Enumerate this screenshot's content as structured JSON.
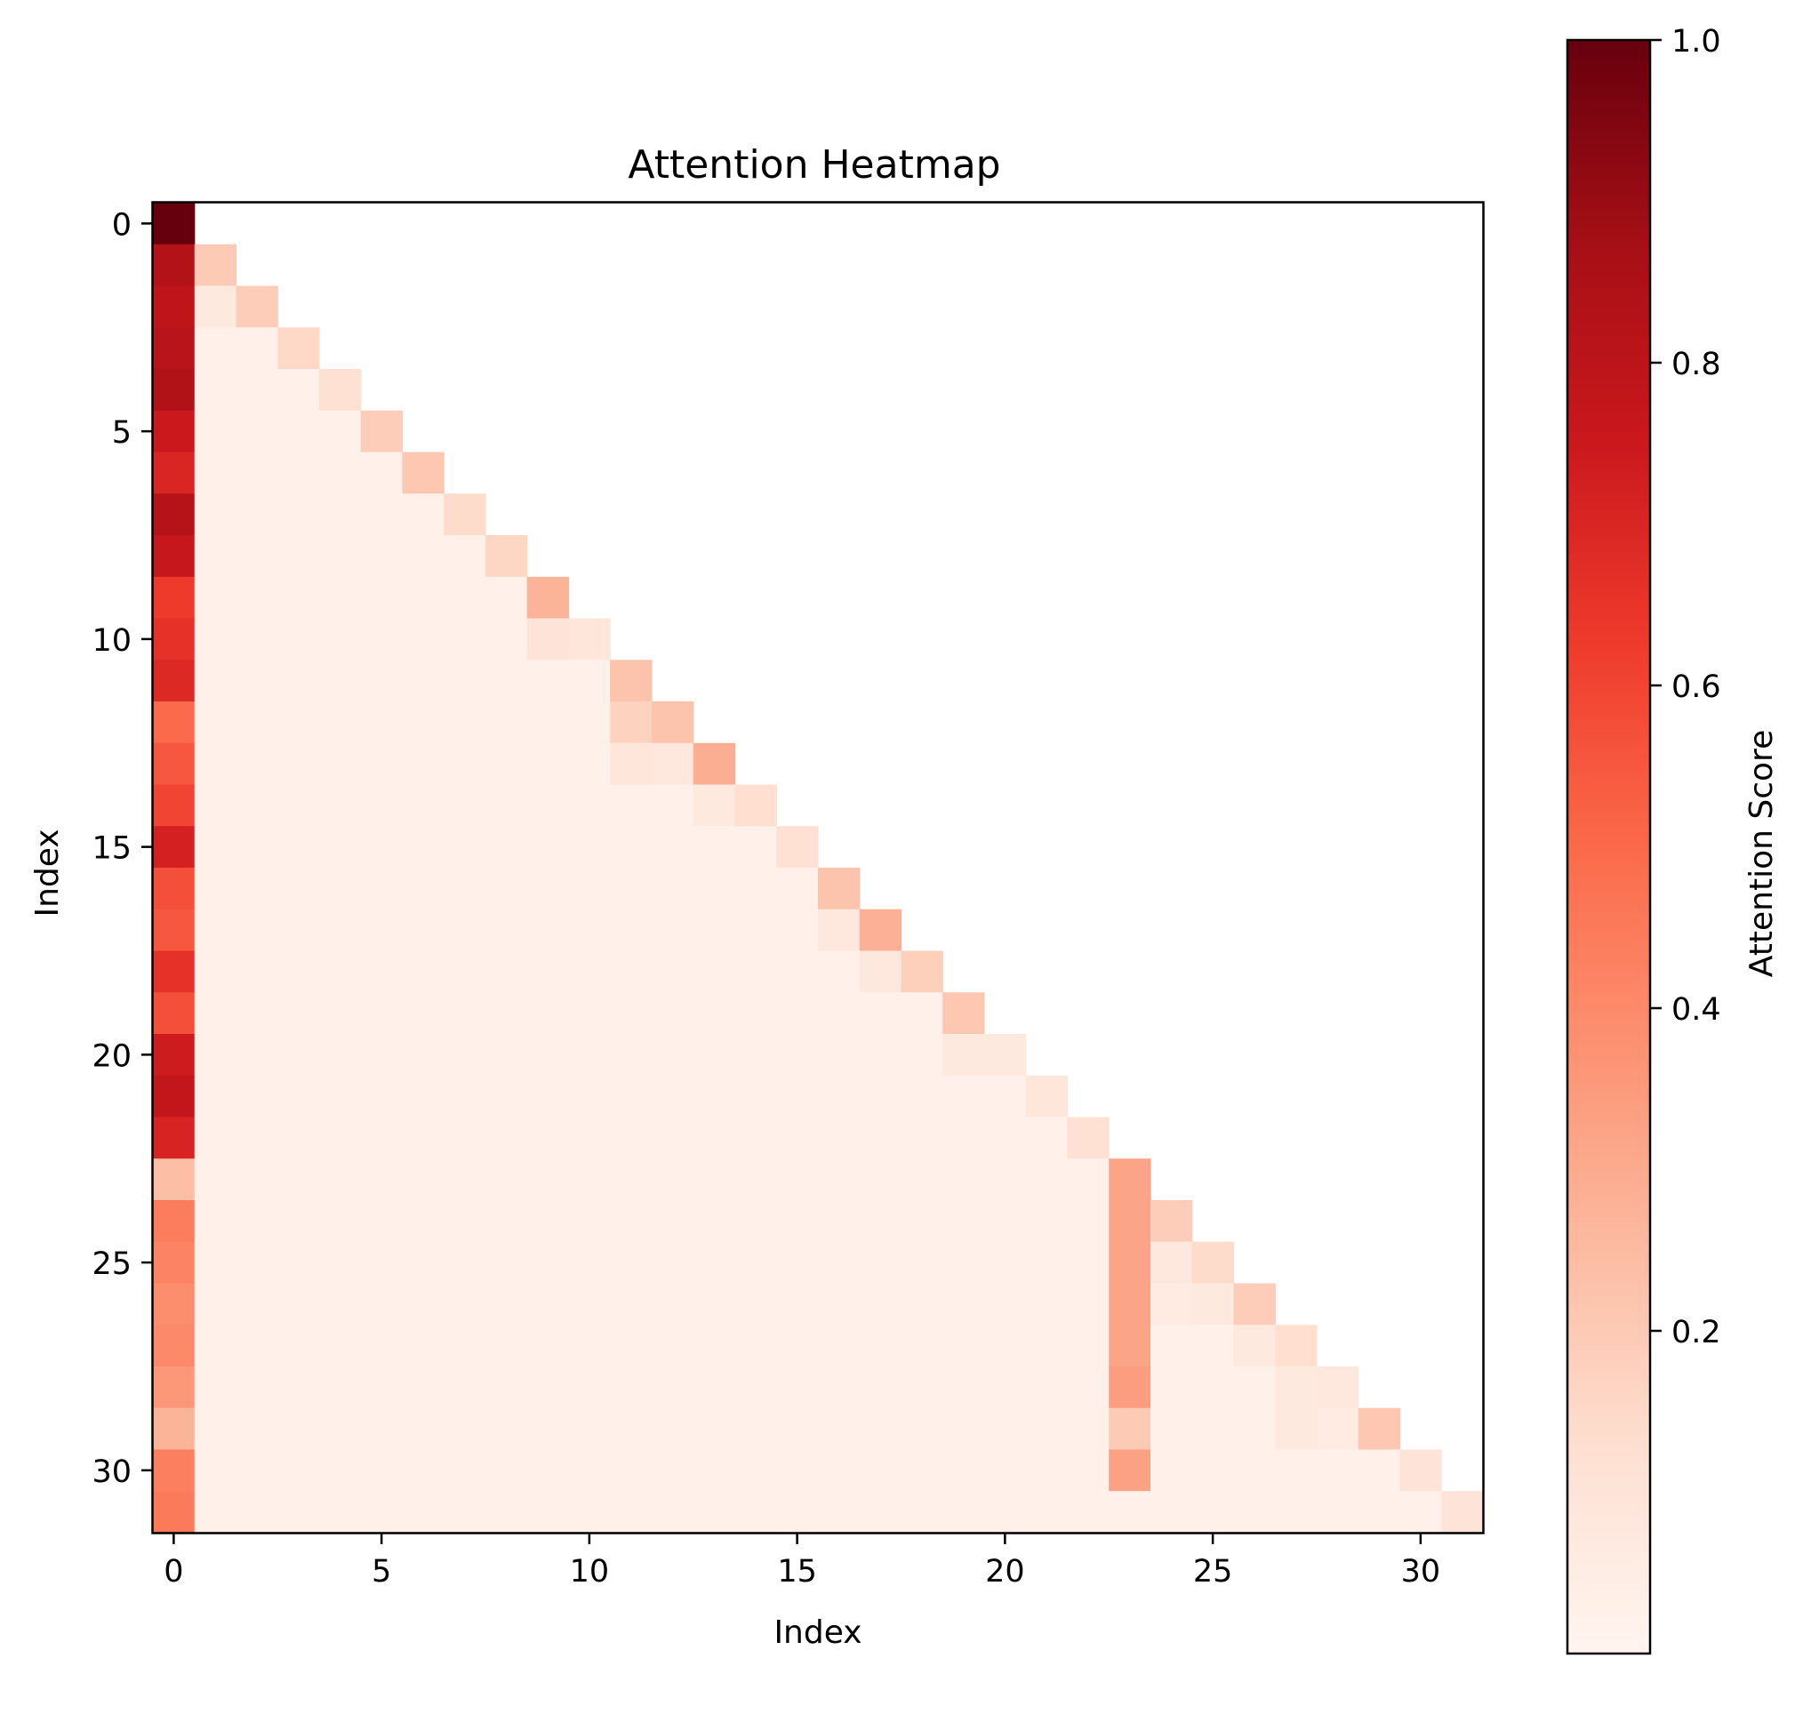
{
  "chart_data": {
    "type": "heatmap",
    "title": "Attention Heatmap",
    "xlabel": "Index",
    "ylabel": "Index",
    "x_ticks": [
      0,
      5,
      10,
      15,
      20,
      25,
      30
    ],
    "y_ticks": [
      0,
      5,
      10,
      15,
      20,
      25,
      30
    ],
    "x_range": [
      -0.5,
      31.5
    ],
    "y_range": [
      -0.5,
      31.5
    ],
    "grid": false,
    "colormap": "Reds",
    "colorbar": {
      "label": "Attention Score",
      "vmin": 0.0,
      "vmax": 1.0,
      "ticks": [
        "0.2",
        "0.4",
        "0.6",
        "0.8",
        "1.0"
      ],
      "placement": "right"
    },
    "size": 32,
    "mask": "lower-triangular",
    "column0": [
      1.0,
      0.83,
      0.79,
      0.81,
      0.84,
      0.75,
      0.7,
      0.82,
      0.77,
      0.63,
      0.66,
      0.69,
      0.5,
      0.55,
      0.6,
      0.72,
      0.57,
      0.55,
      0.66,
      0.57,
      0.74,
      0.78,
      0.71,
      0.24,
      0.44,
      0.42,
      0.39,
      0.4,
      0.36,
      0.27,
      0.43,
      0.45
    ],
    "diagonal": [
      1.0,
      0.2,
      0.19,
      0.15,
      0.12,
      0.19,
      0.21,
      0.14,
      0.16,
      0.27,
      0.09,
      0.22,
      0.22,
      0.29,
      0.13,
      0.12,
      0.22,
      0.28,
      0.18,
      0.21,
      0.07,
      0.09,
      0.12,
      0.32,
      0.19,
      0.14,
      0.19,
      0.13,
      0.08,
      0.21,
      0.1,
      0.1
    ],
    "column23": [
      0.32,
      0.2,
      0.32,
      0.32,
      0.32,
      0.34,
      0.2,
      0.33
    ],
    "extra_cells": [
      {
        "row": 2,
        "col": 1,
        "value": 0.07
      },
      {
        "row": 10,
        "col": 9,
        "value": 0.1
      },
      {
        "row": 12,
        "col": 11,
        "value": 0.17
      },
      {
        "row": 13,
        "col": 11,
        "value": 0.09
      },
      {
        "row": 13,
        "col": 12,
        "value": 0.08
      },
      {
        "row": 14,
        "col": 13,
        "value": 0.07
      },
      {
        "row": 17,
        "col": 16,
        "value": 0.08
      },
      {
        "row": 18,
        "col": 17,
        "value": 0.08
      },
      {
        "row": 20,
        "col": 19,
        "value": 0.07
      },
      {
        "row": 24,
        "col": 23,
        "value": 0.32
      },
      {
        "row": 25,
        "col": 24,
        "value": 0.08
      },
      {
        "row": 26,
        "col": 24,
        "value": 0.06
      },
      {
        "row": 26,
        "col": 25,
        "value": 0.07
      },
      {
        "row": 27,
        "col": 26,
        "value": 0.07
      },
      {
        "row": 28,
        "col": 27,
        "value": 0.07
      },
      {
        "row": 29,
        "col": 27,
        "value": 0.07
      },
      {
        "row": 29,
        "col": 28,
        "value": 0.06
      }
    ],
    "background_value": 0.03
  }
}
